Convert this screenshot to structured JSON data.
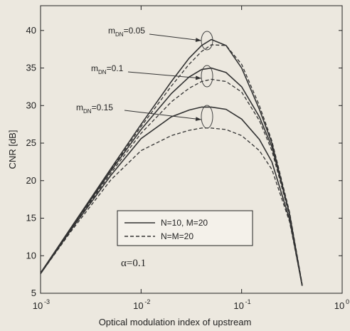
{
  "chart_data": {
    "type": "line",
    "x_label": "Optical modulation index of upstream",
    "y_label": "CNR [dB]",
    "log_x": true,
    "xlim": [
      0.001,
      1
    ],
    "xticks": [
      {
        "value": 0.001,
        "label": "10",
        "exponent": "-3"
      },
      {
        "value": 0.01,
        "label": "10",
        "exponent": "-2"
      },
      {
        "value": 0.1,
        "label": "10",
        "exponent": "-1"
      },
      {
        "value": 1,
        "label": "10",
        "exponent": "0"
      }
    ],
    "ylim": [
      5,
      43.3
    ],
    "yticks": [
      5,
      10,
      15,
      20,
      25,
      30,
      35,
      40
    ],
    "x": [
      0.001,
      0.002,
      0.005,
      0.01,
      0.02,
      0.03,
      0.04,
      0.05,
      0.07,
      0.1,
      0.15,
      0.2,
      0.3,
      0.4
    ],
    "series": [
      {
        "name": "N=10, M=20",
        "color": "#333333",
        "dashed": false,
        "curves": [
          {
            "values": [
              7.7,
              13.7,
              21.6,
              27.5,
              33.2,
              36.3,
              38.0,
              38.8,
              38.0,
              35.0,
              29.5,
              25.0,
              15.5,
              6.0
            ]
          },
          {
            "values": [
              7.7,
              13.6,
              21.3,
              26.8,
              31.6,
              33.8,
              34.8,
              35.0,
              34.4,
              32.5,
              28.5,
              24.5,
              15.5,
              6.0
            ]
          },
          {
            "values": [
              7.6,
              13.4,
              20.7,
              25.6,
              28.5,
              29.4,
              29.8,
              29.8,
              29.5,
              28.2,
              25.5,
              22.5,
              14.8,
              6.0
            ]
          }
        ]
      },
      {
        "name": "N=M=20",
        "color": "#333333",
        "dashed": true,
        "curves": [
          {
            "values": [
              7.7,
              13.6,
              21.4,
              27.2,
              32.6,
              35.5,
              37.2,
              38.1,
              38.0,
              35.5,
              30.0,
              25.3,
              15.8,
              6.2
            ]
          },
          {
            "values": [
              7.7,
              13.5,
              21.0,
              26.3,
              30.5,
              32.3,
              33.2,
              33.5,
              33.2,
              31.8,
              28.0,
              24.0,
              15.3,
              6.0
            ]
          },
          {
            "values": [
              7.6,
              13.2,
              20.1,
              24.0,
              26.0,
              26.7,
              27.0,
              27.0,
              26.8,
              26.0,
              24.0,
              21.5,
              14.5,
              6.0
            ]
          }
        ]
      }
    ],
    "annotations": [
      {
        "symbol": "m",
        "subscript": "DN",
        "text": "=0.05"
      },
      {
        "symbol": "m",
        "subscript": "DN",
        "text": "=0.1"
      },
      {
        "symbol": "m",
        "subscript": "DN",
        "text": "=0.15"
      }
    ],
    "parameter": "α=0.1"
  }
}
